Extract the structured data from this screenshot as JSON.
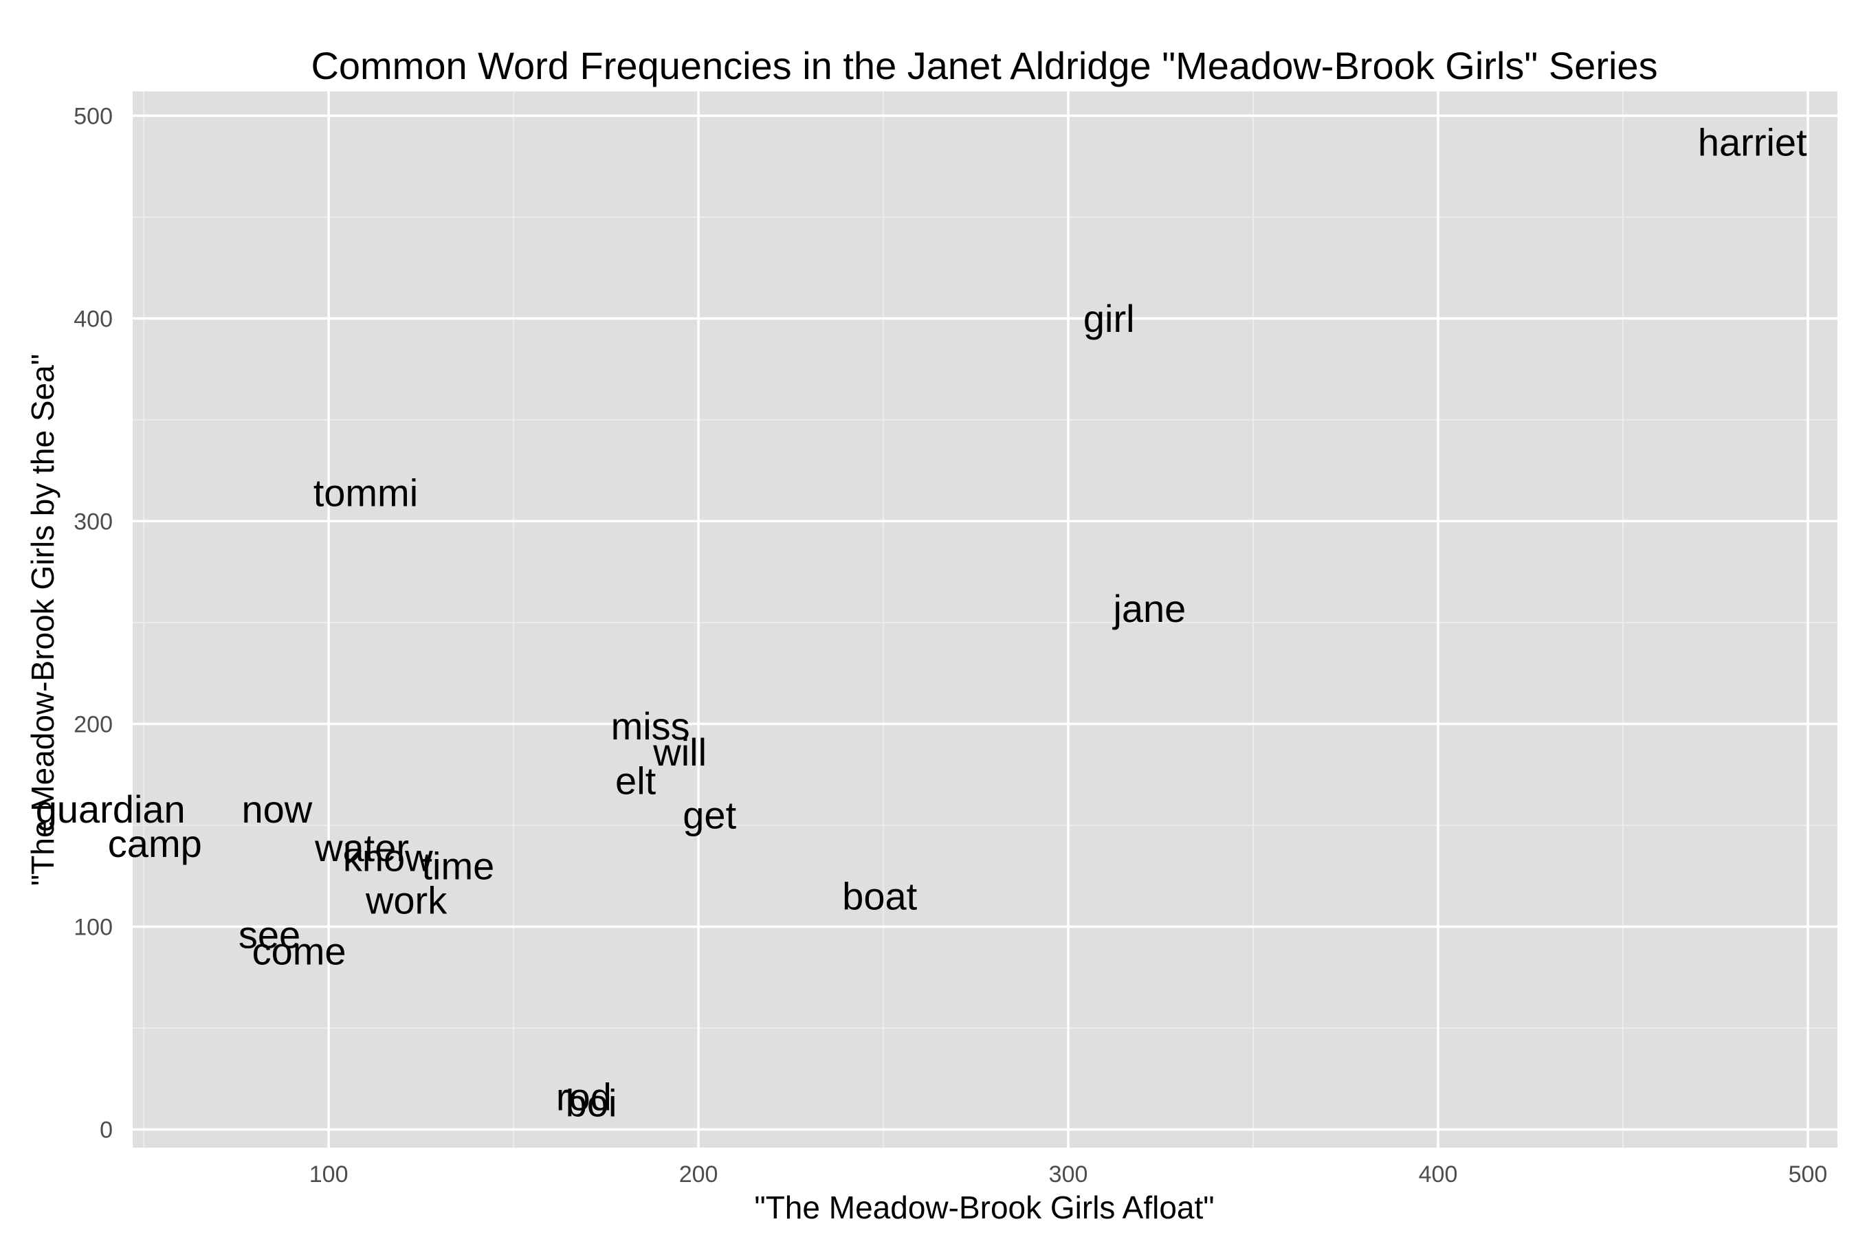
{
  "chart_data": {
    "type": "scatter",
    "title": "Common Word Frequencies in the Janet Aldridge \"Meadow-Brook Girls\" Series",
    "xlabel": "\"The Meadow-Brook Girls Afloat\"",
    "ylabel": "\"The Meadow-Brook Girls by the Sea\"",
    "xlim": [
      47,
      508
    ],
    "ylim": [
      -9,
      512
    ],
    "xticks": [
      100,
      200,
      300,
      400,
      500
    ],
    "yticks": [
      0,
      100,
      200,
      300,
      400,
      500
    ],
    "grid": true,
    "colors": {
      "panel": "#dfdfdf",
      "grid_major": "#ffffff",
      "grid_minor": "#ececec",
      "text": "#000000",
      "tick": "#4d4d4d"
    },
    "points": [
      {
        "label": "harriet",
        "x": 485,
        "y": 487
      },
      {
        "label": "girl",
        "x": 311,
        "y": 400
      },
      {
        "label": "tommi",
        "x": 110,
        "y": 314
      },
      {
        "label": "jane",
        "x": 322,
        "y": 257
      },
      {
        "label": "miss",
        "x": 187,
        "y": 199
      },
      {
        "label": "will",
        "x": 195,
        "y": 186
      },
      {
        "label": "elt",
        "x": 183,
        "y": 172
      },
      {
        "label": "get",
        "x": 203,
        "y": 155
      },
      {
        "label": "guardian",
        "x": 41,
        "y": 158
      },
      {
        "label": "now",
        "x": 86,
        "y": 158
      },
      {
        "label": "camp",
        "x": 53,
        "y": 141
      },
      {
        "label": "water",
        "x": 109,
        "y": 139
      },
      {
        "label": "know",
        "x": 116,
        "y": 134
      },
      {
        "label": "time",
        "x": 135,
        "y": 130
      },
      {
        "label": "work",
        "x": 121,
        "y": 113
      },
      {
        "label": "boat",
        "x": 249,
        "y": 115
      },
      {
        "label": "see",
        "x": 84,
        "y": 96
      },
      {
        "label": "come",
        "x": 92,
        "y": 88
      },
      {
        "label": "rod",
        "x": 169,
        "y": 16
      },
      {
        "label": "boi",
        "x": 171,
        "y": 13
      }
    ]
  }
}
